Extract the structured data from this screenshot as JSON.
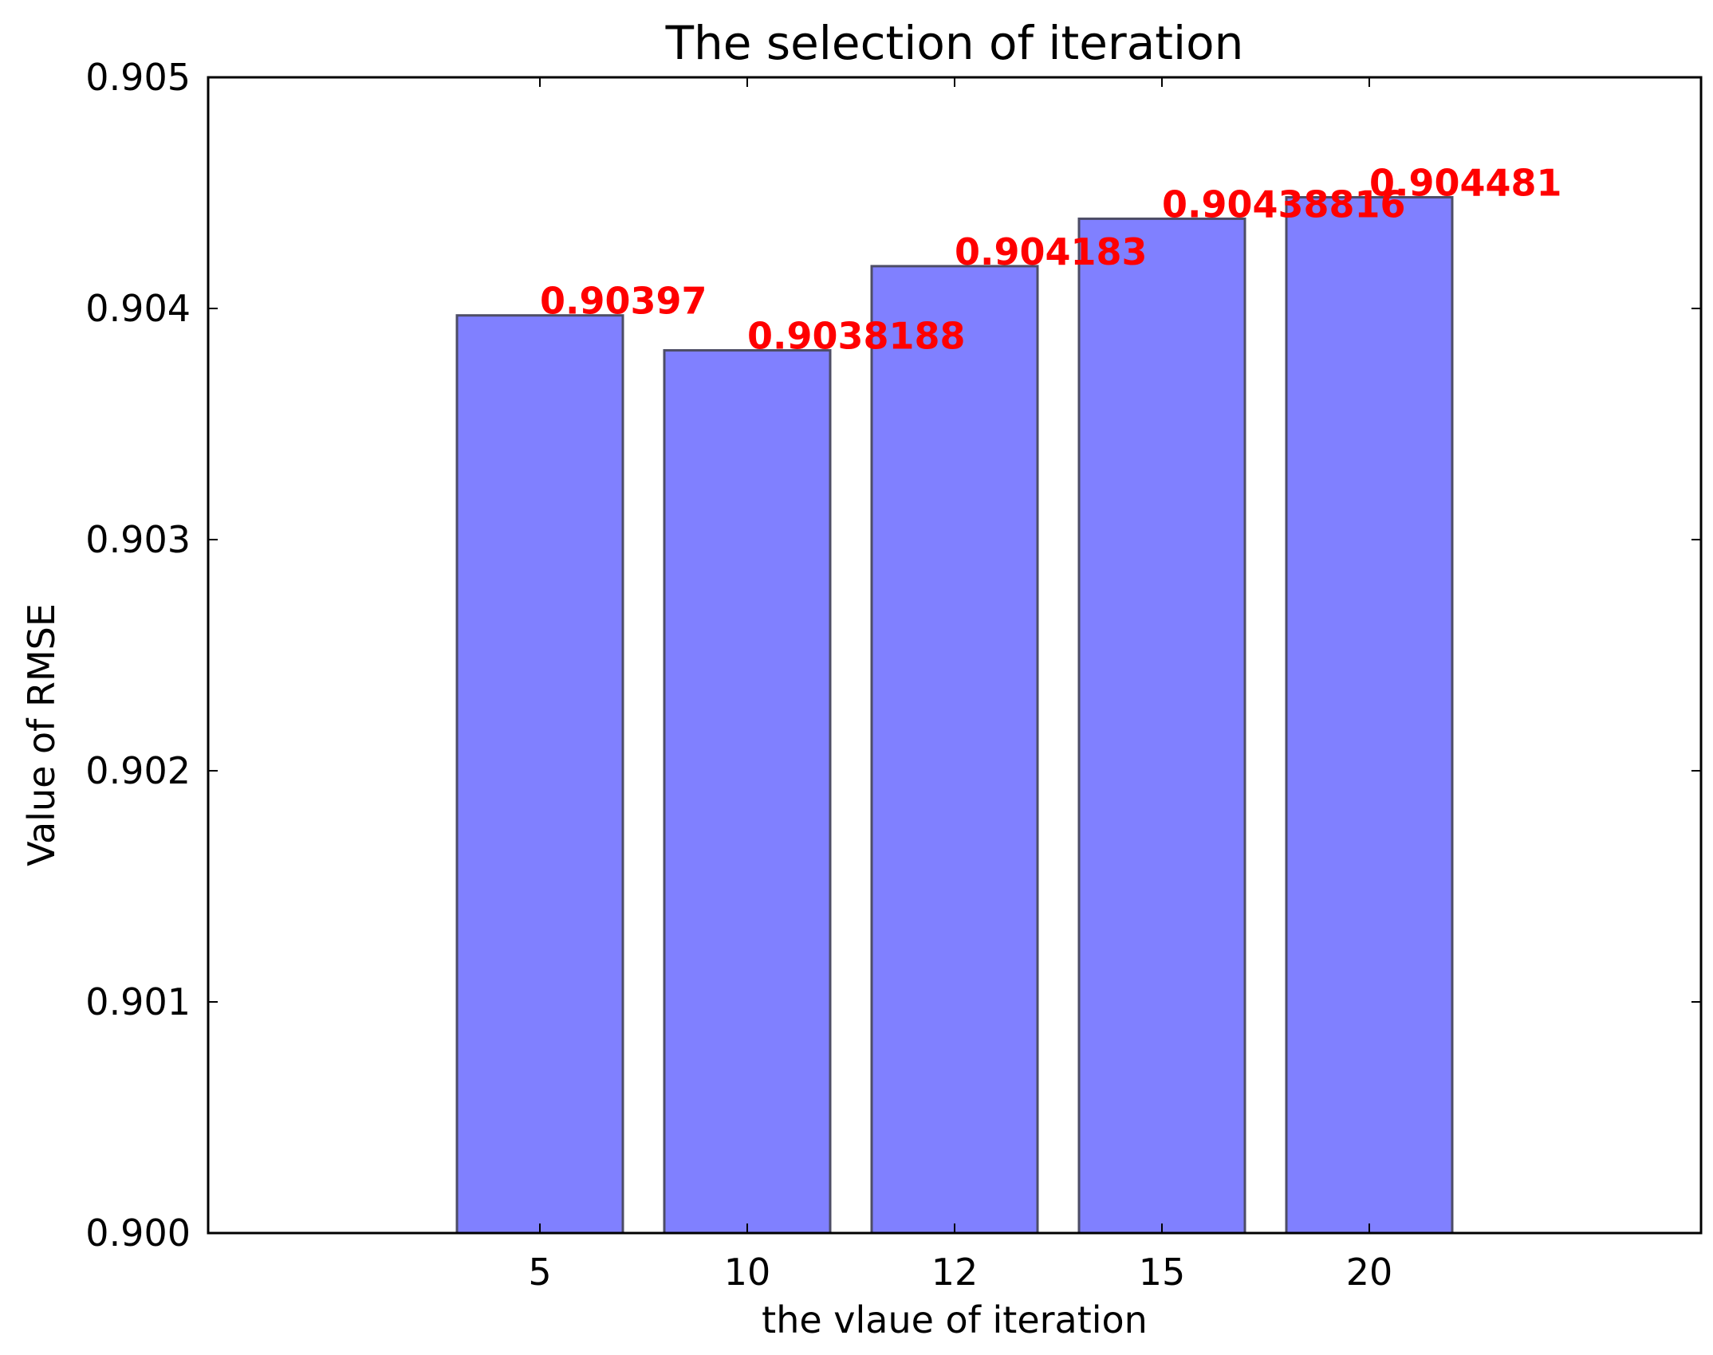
{
  "chart_data": {
    "type": "bar",
    "title": "The selection of iteration",
    "xlabel": "the vlaue of iteration",
    "ylabel": "Value of RMSE",
    "categories": [
      "5",
      "10",
      "12",
      "15",
      "20"
    ],
    "values": [
      0.90397,
      0.9038188,
      0.904183,
      0.90438816,
      0.904481
    ],
    "data_labels": [
      "0.90397",
      "0.9038188",
      "0.904183",
      "0.90438816",
      "0.904481"
    ],
    "ylim": [
      0.9,
      0.905
    ],
    "yticks": [
      0.9,
      0.901,
      0.902,
      0.903,
      0.904,
      0.905
    ],
    "ytick_labels": [
      "0.900",
      "0.901",
      "0.902",
      "0.903",
      "0.904",
      "0.905"
    ],
    "grid": false,
    "colors": {
      "bar_fill": "#8080ff",
      "bar_edge": "#4d4d66",
      "data_label": "#ff0000",
      "axis": "#000000"
    }
  }
}
